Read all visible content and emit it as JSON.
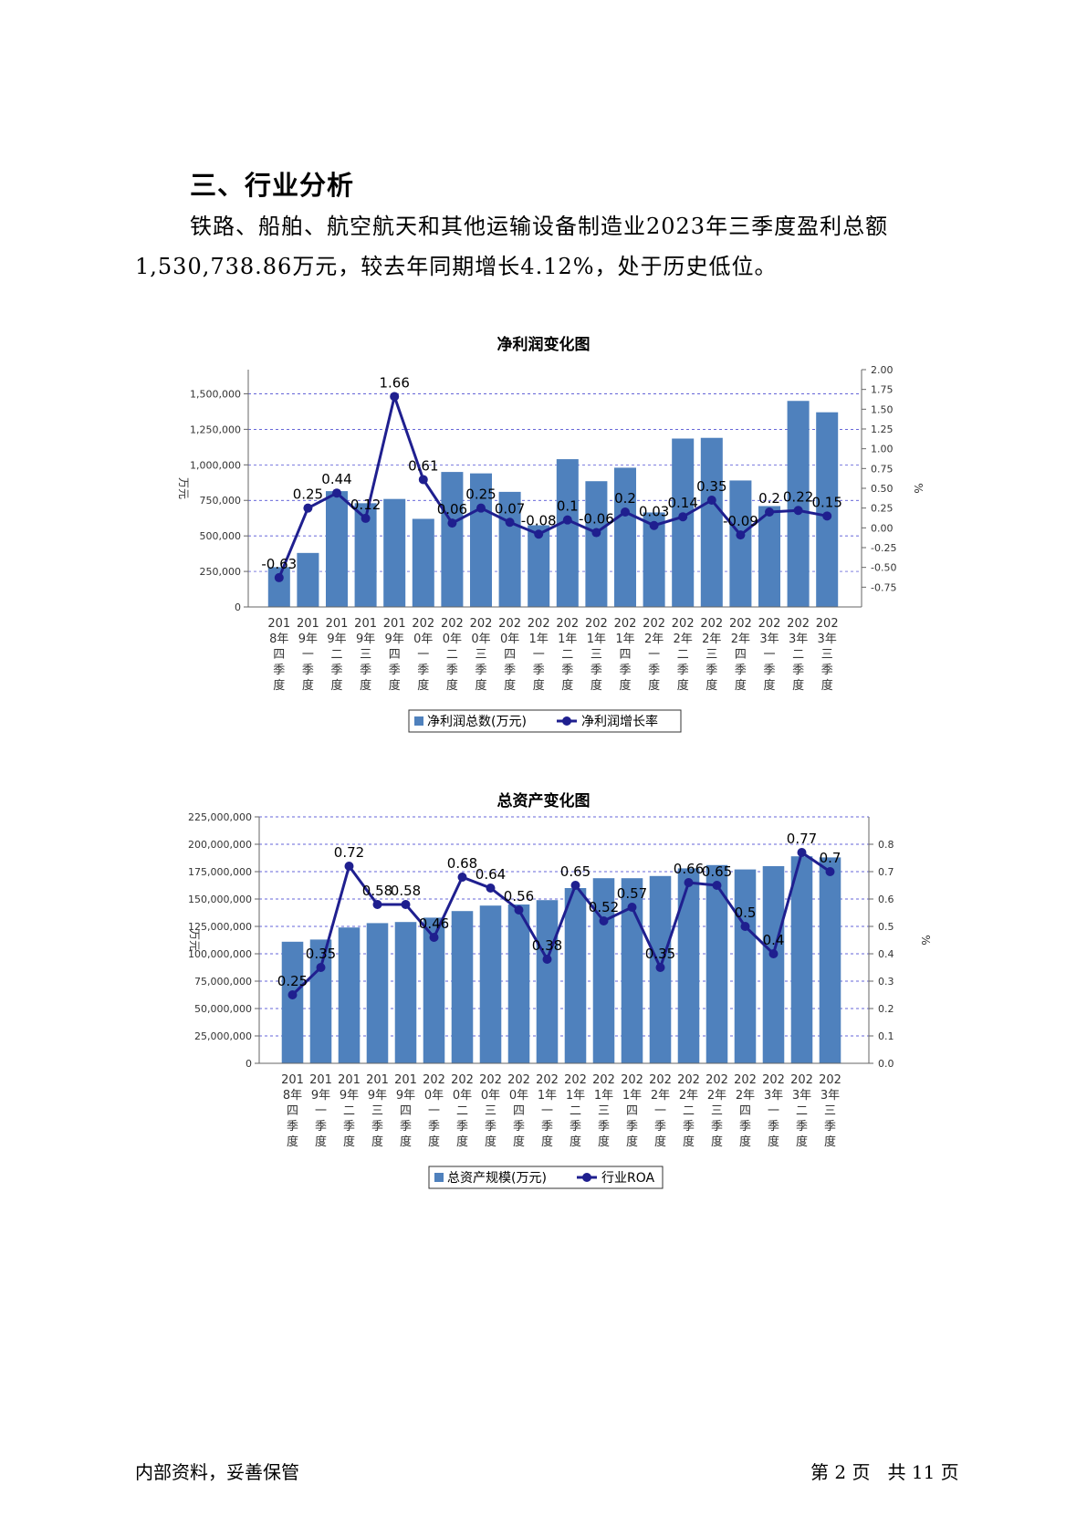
{
  "doc": {
    "heading": "三、行业分析",
    "para_line1": "铁路、船舶、航空航天和其他运输设备制造业2023年三季度盈利总额",
    "para_line2": "1,530,738.86万元，较去年同期增长4.12%，处于历史低位。",
    "footer_left": "内部资料，妥善保管",
    "footer_right": "第 2 页   共 11 页"
  },
  "chart_data": [
    {
      "type": "bar",
      "title": "净利润变化图",
      "categories": [
        [
          "201",
          "8年",
          "四",
          "季",
          "度"
        ],
        [
          "201",
          "9年",
          "一",
          "季",
          "度"
        ],
        [
          "201",
          "9年",
          "二",
          "季",
          "度"
        ],
        [
          "201",
          "9年",
          "三",
          "季",
          "度"
        ],
        [
          "201",
          "9年",
          "四",
          "季",
          "度"
        ],
        [
          "202",
          "0年",
          "一",
          "季",
          "度"
        ],
        [
          "202",
          "0年",
          "二",
          "季",
          "度"
        ],
        [
          "202",
          "0年",
          "三",
          "季",
          "度"
        ],
        [
          "202",
          "0年",
          "四",
          "季",
          "度"
        ],
        [
          "202",
          "1年",
          "一",
          "季",
          "度"
        ],
        [
          "202",
          "1年",
          "二",
          "季",
          "度"
        ],
        [
          "202",
          "1年",
          "三",
          "季",
          "度"
        ],
        [
          "202",
          "1年",
          "四",
          "季",
          "度"
        ],
        [
          "202",
          "2年",
          "一",
          "季",
          "度"
        ],
        [
          "202",
          "2年",
          "二",
          "季",
          "度"
        ],
        [
          "202",
          "2年",
          "三",
          "季",
          "度"
        ],
        [
          "202",
          "2年",
          "四",
          "季",
          "度"
        ],
        [
          "202",
          "3年",
          "一",
          "季",
          "度"
        ],
        [
          "202",
          "3年",
          "二",
          "季",
          "度"
        ],
        [
          "202",
          "3年",
          "三",
          "季",
          "度"
        ]
      ],
      "series": [
        {
          "name": "净利润总数(万元)",
          "kind": "bar",
          "axis": "left",
          "color": "#4F81BD",
          "values": [
            280000,
            380000,
            815000,
            730000,
            760000,
            620000,
            950000,
            940000,
            810000,
            575000,
            1040000,
            885000,
            980000,
            665000,
            1185000,
            1190000,
            890000,
            710000,
            1450000,
            1370000
          ]
        },
        {
          "name": "净利润增长率",
          "kind": "line",
          "axis": "right",
          "color": "#1F1F8F",
          "values": [
            -0.63,
            0.25,
            0.44,
            0.12,
            1.66,
            0.61,
            0.06,
            0.25,
            0.07,
            -0.08,
            0.1,
            -0.06,
            0.2,
            0.03,
            0.14,
            0.35,
            -0.09,
            0.2,
            0.22,
            0.15
          ],
          "labels": [
            "-0.63",
            "0.25",
            "0.44",
            "0.12",
            "1.66",
            "0.61",
            "0.06",
            "0.25",
            "0.07",
            "-0.08",
            "0.1",
            "-0.06",
            "0.2",
            "0.03",
            "0.14",
            "0.35",
            "-0.09",
            "0.2",
            "0.22",
            "0.15"
          ]
        }
      ],
      "ylabel_left": "万元",
      "ylabel_right": "%",
      "yticks_left": [
        "0",
        "250,000",
        "500,000",
        "750,000",
        "1,000,000",
        "1,250,000",
        "1,500,000"
      ],
      "yticks_right": [
        "-0.75",
        "-0.50",
        "-0.25",
        "0.00",
        "0.25",
        "0.50",
        "0.75",
        "1.00",
        "1.25",
        "1.50",
        "1.75",
        "2.00"
      ],
      "ylim_left": [
        0,
        1670000
      ],
      "ylim_right": [
        -1.0,
        2.0
      ],
      "grid": true,
      "legend": "bottom"
    },
    {
      "type": "bar",
      "title": "总资产变化图",
      "categories": [
        [
          "201",
          "8年",
          "四",
          "季",
          "度"
        ],
        [
          "201",
          "9年",
          "一",
          "季",
          "度"
        ],
        [
          "201",
          "9年",
          "二",
          "季",
          "度"
        ],
        [
          "201",
          "9年",
          "三",
          "季",
          "度"
        ],
        [
          "201",
          "9年",
          "四",
          "季",
          "度"
        ],
        [
          "202",
          "0年",
          "一",
          "季",
          "度"
        ],
        [
          "202",
          "0年",
          "二",
          "季",
          "度"
        ],
        [
          "202",
          "0年",
          "三",
          "季",
          "度"
        ],
        [
          "202",
          "0年",
          "四",
          "季",
          "度"
        ],
        [
          "202",
          "1年",
          "一",
          "季",
          "度"
        ],
        [
          "202",
          "1年",
          "二",
          "季",
          "度"
        ],
        [
          "202",
          "1年",
          "三",
          "季",
          "度"
        ],
        [
          "202",
          "1年",
          "四",
          "季",
          "度"
        ],
        [
          "202",
          "2年",
          "一",
          "季",
          "度"
        ],
        [
          "202",
          "2年",
          "二",
          "季",
          "度"
        ],
        [
          "202",
          "2年",
          "三",
          "季",
          "度"
        ],
        [
          "202",
          "2年",
          "四",
          "季",
          "度"
        ],
        [
          "202",
          "3年",
          "一",
          "季",
          "度"
        ],
        [
          "202",
          "3年",
          "二",
          "季",
          "度"
        ],
        [
          "202",
          "3年",
          "三",
          "季",
          "度"
        ]
      ],
      "series": [
        {
          "name": "总资产规模(万元)",
          "kind": "bar",
          "axis": "left",
          "color": "#4F81BD",
          "values": [
            111000000,
            113000000,
            124000000,
            128000000,
            129000000,
            133000000,
            139000000,
            144000000,
            145000000,
            149000000,
            160000000,
            169000000,
            169000000,
            171000000,
            178000000,
            181000000,
            177000000,
            180000000,
            189000000,
            188000000
          ]
        },
        {
          "name": "行业ROA",
          "kind": "line",
          "axis": "right",
          "color": "#1F1F8F",
          "values": [
            0.25,
            0.35,
            0.72,
            0.58,
            0.58,
            0.46,
            0.68,
            0.64,
            0.56,
            0.38,
            0.65,
            0.52,
            0.57,
            0.35,
            0.66,
            0.65,
            0.5,
            0.4,
            0.77,
            0.7
          ],
          "labels": [
            "0.25",
            "0.35",
            "0.72",
            "0.58",
            "0.58",
            "0.46",
            "0.68",
            "0.64",
            "0.56",
            "0.38",
            "0.65",
            "0.52",
            "0.57",
            "0.35",
            "0.66",
            "0.65",
            "0.5",
            "0.4",
            "0.77",
            "0.7"
          ]
        }
      ],
      "ylabel_left": "万元",
      "ylabel_right": "%",
      "yticks_left": [
        "0",
        "25,000,000",
        "50,000,000",
        "75,000,000",
        "100,000,000",
        "125,000,000",
        "150,000,000",
        "175,000,000",
        "200,000,000",
        "225,000,000"
      ],
      "yticks_right": [
        "0.0",
        "0.1",
        "0.2",
        "0.3",
        "0.4",
        "0.5",
        "0.6",
        "0.7",
        "0.8"
      ],
      "ylim_left": [
        0,
        225000000
      ],
      "ylim_right": [
        0,
        0.9
      ],
      "grid": true,
      "legend": "bottom"
    }
  ]
}
